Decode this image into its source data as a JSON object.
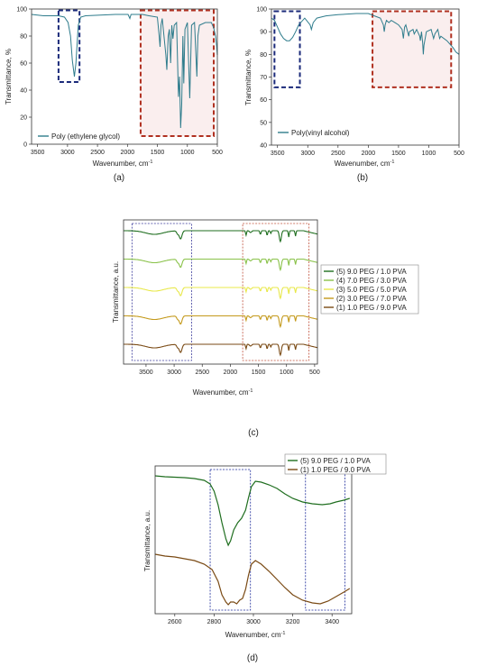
{
  "chart_data": [
    {
      "panel": "a",
      "type": "line",
      "panel_label": "(a)",
      "xlabel": "Wavenumber, cm",
      "xlabel_sup": "-1",
      "ylabel": "Transmittance, %",
      "xlim": [
        3600,
        500
      ],
      "ylim": [
        0,
        100
      ],
      "x_reversed": true,
      "x_ticks": [
        3500,
        3000,
        2500,
        2000,
        1500,
        1000,
        500
      ],
      "y_ticks": [
        0,
        20,
        40,
        60,
        80,
        100
      ],
      "legend_position": "bottom-left",
      "regions": [
        {
          "color": "#1b2a7a",
          "x": [
            3150,
            2800
          ],
          "y": [
            46,
            99
          ]
        },
        {
          "color": "#b03020",
          "x": [
            1780,
            560
          ],
          "y": [
            6,
            99
          ]
        }
      ],
      "series": [
        {
          "name": "Poly (ethylene glycol)",
          "color": "#2e7c8c",
          "points": [
            [
              3600,
              96
            ],
            [
              3500,
              95.5
            ],
            [
              3400,
              95
            ],
            [
              3300,
              95
            ],
            [
              3150,
              95
            ],
            [
              3050,
              94
            ],
            [
              2990,
              90
            ],
            [
              2950,
              80
            ],
            [
              2920,
              62
            ],
            [
              2885,
              50
            ],
            [
              2860,
              60
            ],
            [
              2820,
              88
            ],
            [
              2780,
              94
            ],
            [
              2700,
              95
            ],
            [
              2200,
              96
            ],
            [
              1990,
              96
            ],
            [
              1960,
              93
            ],
            [
              1940,
              96
            ],
            [
              1750,
              96
            ],
            [
              1640,
              95
            ],
            [
              1500,
              94
            ],
            [
              1470,
              80
            ],
            [
              1455,
              72
            ],
            [
              1440,
              88
            ],
            [
              1420,
              93
            ],
            [
              1360,
              66
            ],
            [
              1342,
              55
            ],
            [
              1320,
              80
            ],
            [
              1300,
              85
            ],
            [
              1280,
              60
            ],
            [
              1260,
              88
            ],
            [
              1240,
              78
            ],
            [
              1220,
              88
            ],
            [
              1180,
              90
            ],
            [
              1148,
              35
            ],
            [
              1130,
              50
            ],
            [
              1112,
              12
            ],
            [
              1095,
              30
            ],
            [
              1075,
              80
            ],
            [
              1060,
              45
            ],
            [
              1040,
              85
            ],
            [
              1000,
              90
            ],
            [
              960,
              34
            ],
            [
              945,
              60
            ],
            [
              930,
              88
            ],
            [
              880,
              90
            ],
            [
              842,
              50
            ],
            [
              825,
              80
            ],
            [
              800,
              88
            ],
            [
              700,
              90
            ],
            [
              600,
              90
            ],
            [
              560,
              86
            ],
            [
              530,
              80
            ],
            [
              510,
              72
            ],
            [
              500,
              66
            ]
          ]
        }
      ]
    },
    {
      "panel": "b",
      "type": "line",
      "panel_label": "(b)",
      "xlabel": "Wavenumber, cm",
      "xlabel_sup": "-1",
      "ylabel": "Transmittance, %",
      "xlim": [
        3600,
        500
      ],
      "ylim": [
        40,
        100
      ],
      "x_reversed": true,
      "x_ticks": [
        3500,
        3000,
        2500,
        2000,
        1500,
        1000,
        500
      ],
      "y_ticks": [
        40,
        50,
        60,
        70,
        80,
        90,
        100
      ],
      "legend_position": "bottom-left",
      "regions": [
        {
          "color": "#1b2a7a",
          "x": [
            3550,
            3130
          ],
          "y": [
            65.5,
            99
          ]
        },
        {
          "color": "#b03020",
          "x": [
            1930,
            630
          ],
          "y": [
            65.5,
            99
          ]
        }
      ],
      "series": [
        {
          "name": "Poly(vinyl alcohol)",
          "color": "#2e7c8c",
          "points": [
            [
              3600,
              96
            ],
            [
              3550,
              95
            ],
            [
              3500,
              92
            ],
            [
              3450,
              89
            ],
            [
              3400,
              87
            ],
            [
              3350,
              86
            ],
            [
              3300,
              86
            ],
            [
              3250,
              87.5
            ],
            [
              3200,
              90
            ],
            [
              3150,
              93
            ],
            [
              3050,
              96
            ],
            [
              2960,
              93
            ],
            [
              2940,
              91
            ],
            [
              2910,
              94
            ],
            [
              2850,
              96
            ],
            [
              2700,
              97
            ],
            [
              2500,
              97.5
            ],
            [
              2200,
              98
            ],
            [
              2000,
              98
            ],
            [
              1900,
              97
            ],
            [
              1800,
              96
            ],
            [
              1750,
              93
            ],
            [
              1735,
              90
            ],
            [
              1720,
              93
            ],
            [
              1700,
              95
            ],
            [
              1660,
              94
            ],
            [
              1620,
              95
            ],
            [
              1560,
              94
            ],
            [
              1500,
              93
            ],
            [
              1440,
              91
            ],
            [
              1420,
              87
            ],
            [
              1400,
              92
            ],
            [
              1380,
              93
            ],
            [
              1330,
              88
            ],
            [
              1320,
              90
            ],
            [
              1260,
              91
            ],
            [
              1240,
              89
            ],
            [
              1200,
              91
            ],
            [
              1150,
              88
            ],
            [
              1140,
              86
            ],
            [
              1120,
              90
            ],
            [
              1100,
              85
            ],
            [
              1090,
              80
            ],
            [
              1080,
              84
            ],
            [
              1040,
              90
            ],
            [
              960,
              91
            ],
            [
              920,
              87
            ],
            [
              900,
              89
            ],
            [
              850,
              91
            ],
            [
              820,
              87
            ],
            [
              800,
              88
            ],
            [
              700,
              86
            ],
            [
              600,
              83
            ],
            [
              550,
              81
            ],
            [
              500,
              80
            ]
          ]
        }
      ]
    },
    {
      "panel": "c",
      "type": "line",
      "panel_label": "(c)",
      "xlabel": "Wavenumber, cm",
      "xlabel_sup": "-1",
      "ylabel": "Transmittance, a.u.",
      "xlim": [
        3900,
        450
      ],
      "x_reversed": true,
      "x_ticks": [
        3500,
        3000,
        2500,
        2000,
        1500,
        1000,
        500
      ],
      "y_ticks": [],
      "legend_position": "right",
      "regions": [
        {
          "color": "#3a3a9a",
          "x": [
            3750,
            2690
          ]
        },
        {
          "color": "#c0503a",
          "x": [
            1780,
            600
          ]
        }
      ],
      "series": [
        {
          "name": "(5) 9.0 PEG / 1.0 PVA",
          "color": "#1f6e1f",
          "offset": 4
        },
        {
          "name": "(4) 7.0 PEG / 3.0 PVA",
          "color": "#8ac24a",
          "offset": 3
        },
        {
          "name": "(3) 5.0 PEG / 5.0 PVA",
          "color": "#e8e84a",
          "offset": 2
        },
        {
          "name": "(2) 3.0 PEG / 7.0 PVA",
          "color": "#c49a1c",
          "offset": 1
        },
        {
          "name": "(1) 1.0 PEG / 9.0 PVA",
          "color": "#7a4a14",
          "offset": 0
        }
      ]
    },
    {
      "panel": "d",
      "type": "line",
      "panel_label": "(d)",
      "xlabel": "Wavenumber, cm",
      "xlabel_sup": "-1",
      "ylabel": "Transmittance, a.u.",
      "xlim": [
        2500,
        3500
      ],
      "x_reversed": false,
      "x_ticks": [
        2600,
        2800,
        3000,
        3200,
        3400
      ],
      "y_ticks": [],
      "legend_position": "top",
      "regions": [
        {
          "color": "#1b2a9a",
          "x": [
            2780,
            2985
          ]
        },
        {
          "color": "#1b2a9a",
          "x": [
            3265,
            3465
          ]
        }
      ],
      "series": [
        {
          "name": "(5) 9.0 PEG / 1.0 PVA",
          "color": "#1f6e1f",
          "points": [
            [
              2500,
              528
            ],
            [
              2550,
              529
            ],
            [
              2600,
              529.5
            ],
            [
              2650,
              530
            ],
            [
              2700,
              531
            ],
            [
              2750,
              533
            ],
            [
              2780,
              537
            ],
            [
              2800,
              545
            ],
            [
              2820,
              560
            ],
            [
              2840,
              580
            ],
            [
              2860,
              598
            ],
            [
              2872,
              605
            ],
            [
              2884,
              600
            ],
            [
              2900,
              588
            ],
            [
              2920,
              580
            ],
            [
              2940,
              575
            ],
            [
              2960,
              566
            ],
            [
              2975,
              552
            ],
            [
              2990,
              540
            ],
            [
              3010,
              534
            ],
            [
              3040,
              535
            ],
            [
              3080,
              538
            ],
            [
              3120,
              542
            ],
            [
              3160,
              548
            ],
            [
              3200,
              553
            ],
            [
              3250,
              557
            ],
            [
              3300,
              559
            ],
            [
              3350,
              560
            ],
            [
              3390,
              559
            ],
            [
              3420,
              557
            ],
            [
              3460,
              555
            ],
            [
              3490,
              553
            ]
          ]
        },
        {
          "name": "(1) 1.0 PEG / 9.0 PVA",
          "color": "#7a4a14",
          "points": [
            [
              2500,
              615
            ],
            [
              2550,
              617
            ],
            [
              2600,
              618
            ],
            [
              2650,
              620
            ],
            [
              2700,
              622
            ],
            [
              2750,
              626
            ],
            [
              2790,
              632
            ],
            [
              2820,
              645
            ],
            [
              2840,
              660
            ],
            [
              2860,
              668
            ],
            [
              2872,
              671
            ],
            [
              2884,
              668
            ],
            [
              2900,
              668
            ],
            [
              2915,
              670
            ],
            [
              2930,
              666
            ],
            [
              2945,
              664
            ],
            [
              2960,
              654
            ],
            [
              2975,
              638
            ],
            [
              2990,
              626
            ],
            [
              3010,
              622
            ],
            [
              3040,
              626
            ],
            [
              3080,
              634
            ],
            [
              3120,
              643
            ],
            [
              3160,
              652
            ],
            [
              3200,
              660
            ],
            [
              3250,
              666
            ],
            [
              3300,
              669
            ],
            [
              3340,
              670
            ],
            [
              3380,
              667
            ],
            [
              3420,
              662
            ],
            [
              3460,
              657
            ],
            [
              3490,
              653
            ]
          ]
        }
      ]
    }
  ]
}
